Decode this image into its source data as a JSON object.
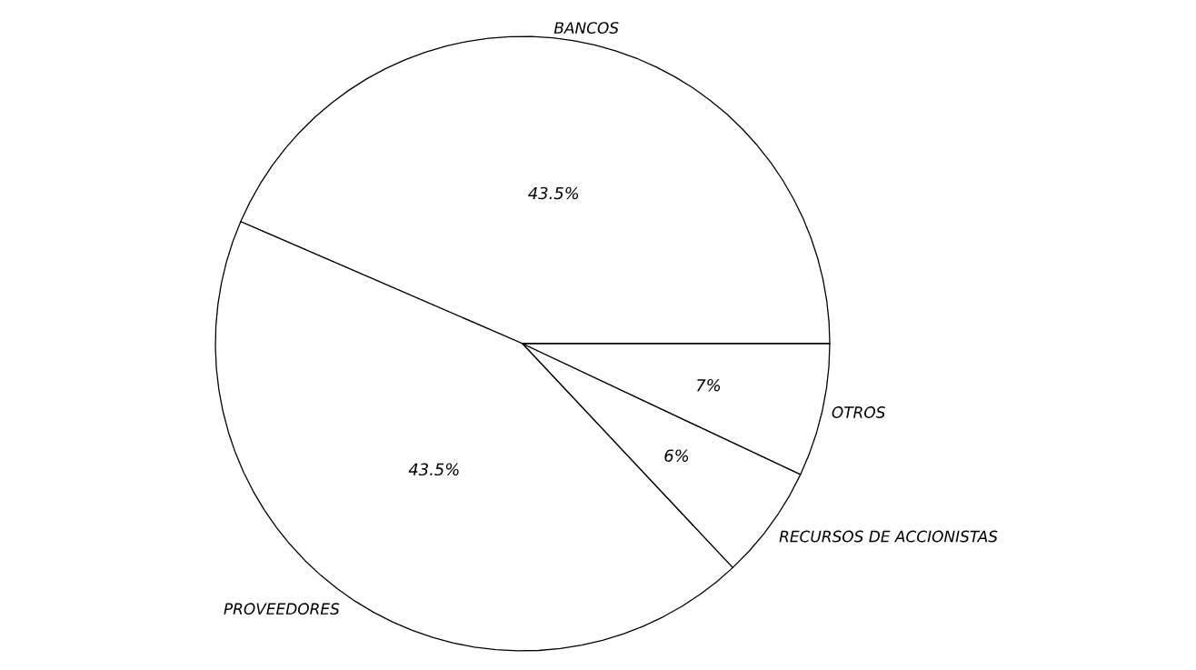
{
  "chart_data": {
    "type": "pie",
    "categories": [
      "BANCOS",
      "PROVEEDORES",
      "RECURSOS DE ACCIONISTAS",
      "OTROS"
    ],
    "values": [
      43.5,
      43.5,
      6,
      7
    ],
    "value_labels": [
      "43.5%",
      "43.5%",
      "6%",
      "7%"
    ],
    "colors": [
      "#ffffff",
      "#ffffff",
      "#ffffff",
      "#ffffff"
    ]
  }
}
